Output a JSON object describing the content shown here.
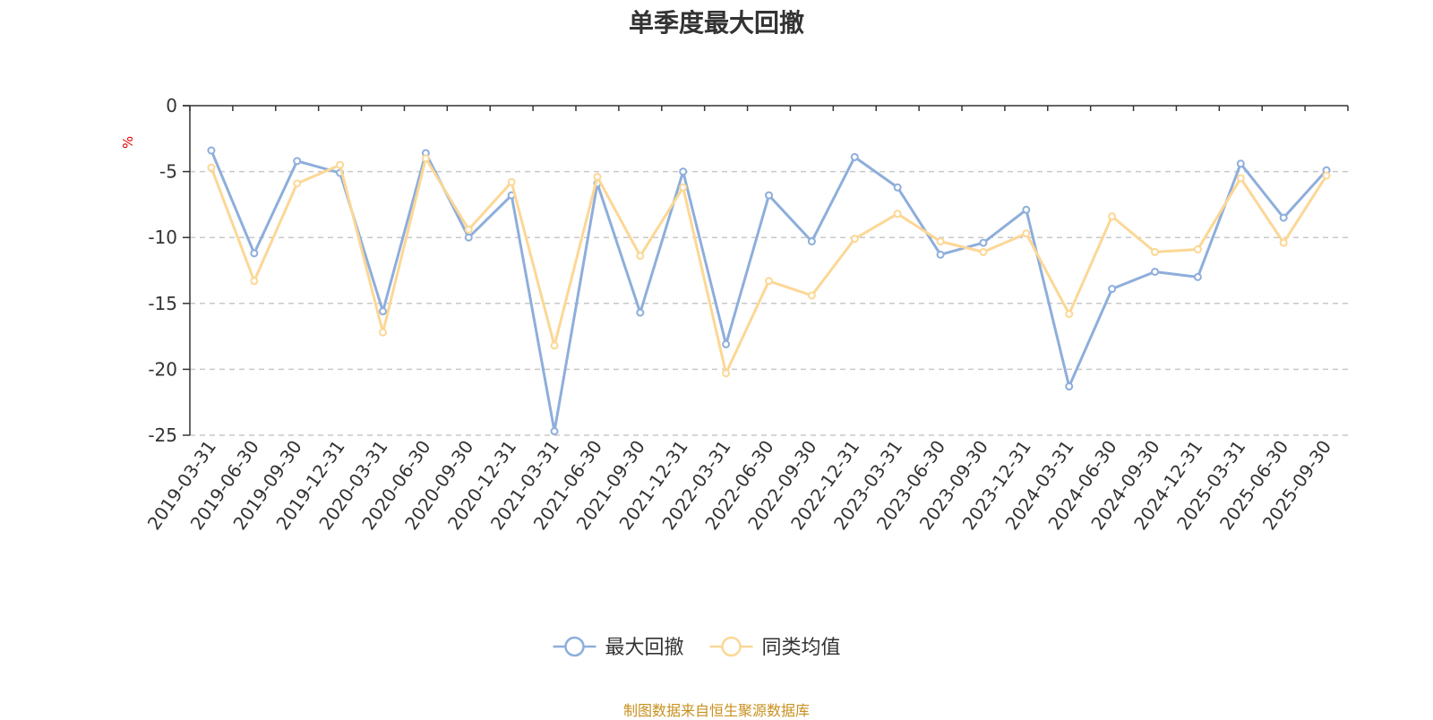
{
  "chart_data": {
    "type": "line",
    "title": "单季度最大回撤",
    "ylabel": "%",
    "ylim": [
      -25,
      0
    ],
    "yticks": [
      0,
      -5,
      -10,
      -15,
      -20,
      -25
    ],
    "grid": true,
    "legend_position": "bottom-center",
    "categories": [
      "2019-03-31",
      "2019-06-30",
      "2019-09-30",
      "2019-12-31",
      "2020-03-31",
      "2020-06-30",
      "2020-09-30",
      "2020-12-31",
      "2021-03-31",
      "2021-06-30",
      "2021-09-30",
      "2021-12-31",
      "2022-03-31",
      "2022-06-30",
      "2022-09-30",
      "2022-12-31",
      "2023-03-31",
      "2023-06-30",
      "2023-09-30",
      "2023-12-31",
      "2024-03-31",
      "2024-06-30",
      "2024-09-30",
      "2024-12-31",
      "2025-03-31",
      "2025-06-30",
      "2025-09-30"
    ],
    "series": [
      {
        "name": "最大回撤",
        "color": "#8eaedb",
        "values": [
          -3.4,
          -11.2,
          -4.2,
          -5.1,
          -15.6,
          -3.6,
          -10.0,
          -6.8,
          -24.7,
          -5.9,
          -15.7,
          -5.0,
          -18.1,
          -6.8,
          -10.3,
          -3.9,
          -6.2,
          -11.3,
          -10.4,
          -7.9,
          -21.3,
          -13.9,
          -12.6,
          -13.0,
          -4.4,
          -8.5,
          -4.9
        ]
      },
      {
        "name": "同类均值",
        "color": "#fcd795",
        "values": [
          -4.7,
          -13.3,
          -5.9,
          -4.5,
          -17.2,
          -4.0,
          -9.4,
          -5.8,
          -18.2,
          -5.4,
          -11.4,
          -6.2,
          -20.3,
          -13.3,
          -14.4,
          -10.1,
          -8.2,
          -10.3,
          -11.1,
          -9.7,
          -15.8,
          -8.4,
          -11.1,
          -10.9,
          -5.5,
          -10.4,
          -5.3
        ]
      }
    ]
  },
  "source_note": "制图数据来自恒生聚源数据库"
}
